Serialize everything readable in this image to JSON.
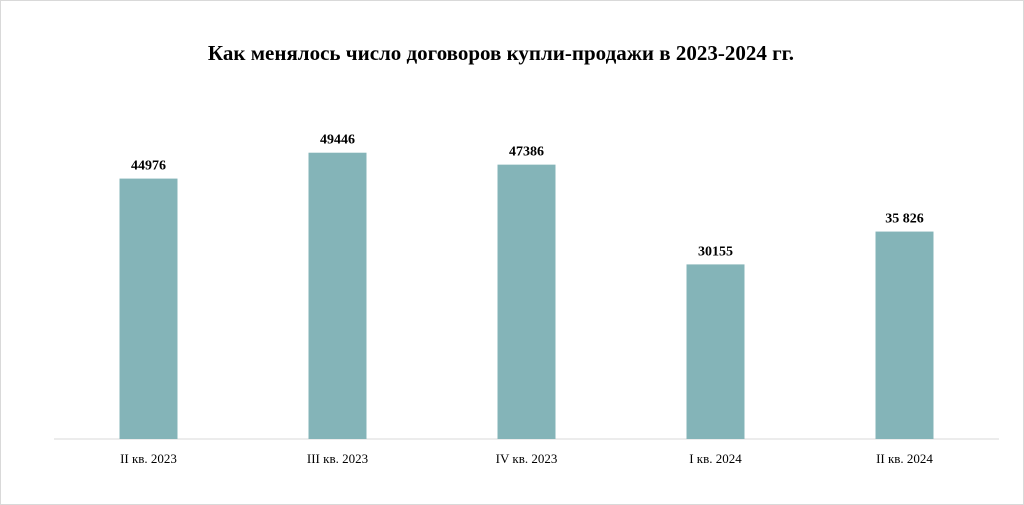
{
  "chart_data": {
    "type": "bar",
    "title": "Как менялось число договоров  купли-продажи в 2023-2024 гг.",
    "categories": [
      "II кв. 2023",
      "III кв. 2023",
      "IV кв. 2023",
      "I кв. 2024",
      "II кв. 2024"
    ],
    "values": [
      44976,
      49446,
      47386,
      30155,
      35826
    ],
    "data_labels": [
      "44976",
      "49446",
      "47386",
      "30155",
      "35 826"
    ],
    "xlabel": "",
    "ylabel": "",
    "ylim": [
      0,
      50000
    ],
    "grid": false,
    "legend": "none",
    "colors": {
      "bar": "#84b4b8",
      "axis": "#d9d9d9"
    }
  }
}
